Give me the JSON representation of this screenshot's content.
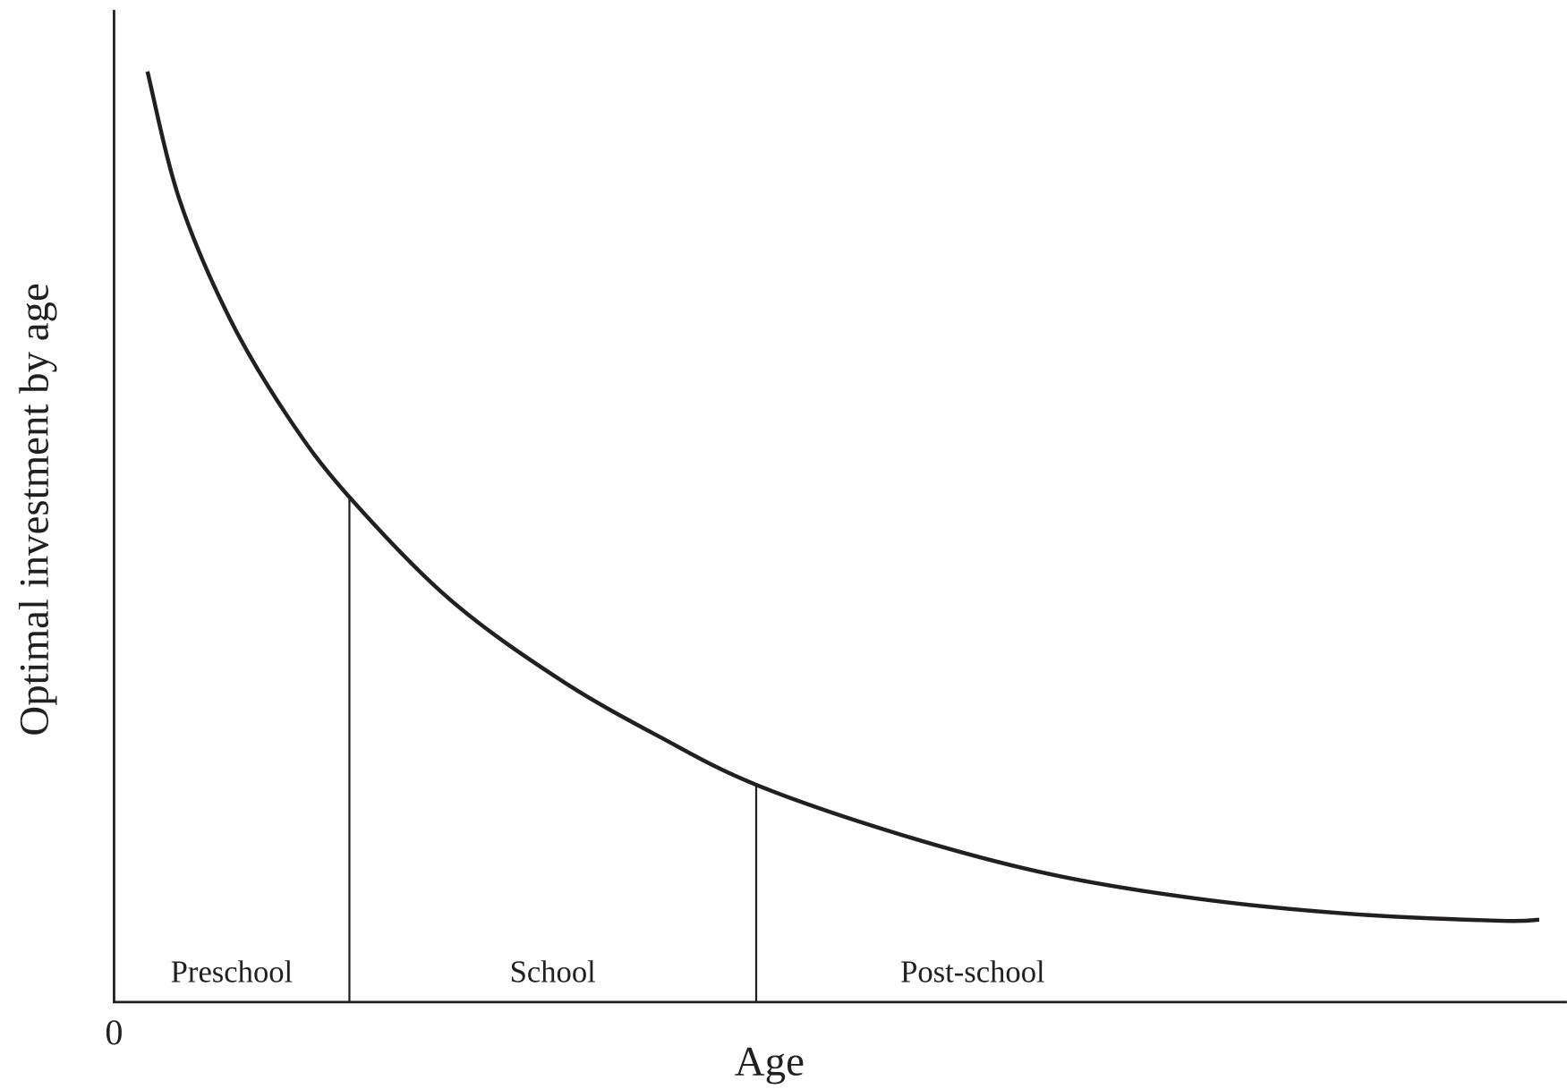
{
  "chart_data": {
    "type": "line",
    "x_label": "Age",
    "y_label": "Optimal investment by age",
    "x": [
      2.3,
      4.5,
      8.0,
      12.1,
      16.2,
      23.1,
      30.7,
      37.6,
      44.2,
      54.1,
      64.4,
      74.7,
      85.0,
      95.3,
      98.1
    ],
    "values": [
      93.8,
      80.9,
      68.8,
      58.7,
      50.9,
      40.6,
      32.5,
      26.7,
      21.9,
      16.9,
      12.9,
      10.4,
      8.9,
      8.2,
      8.3
    ],
    "color": "#231f20",
    "xlim": [
      0,
      100
    ],
    "ylim": [
      0,
      100
    ],
    "xticks": [
      0
    ],
    "boundaries": [
      16.2,
      44.2
    ],
    "stages": [
      "Preschool",
      "School",
      "Post-school"
    ]
  }
}
